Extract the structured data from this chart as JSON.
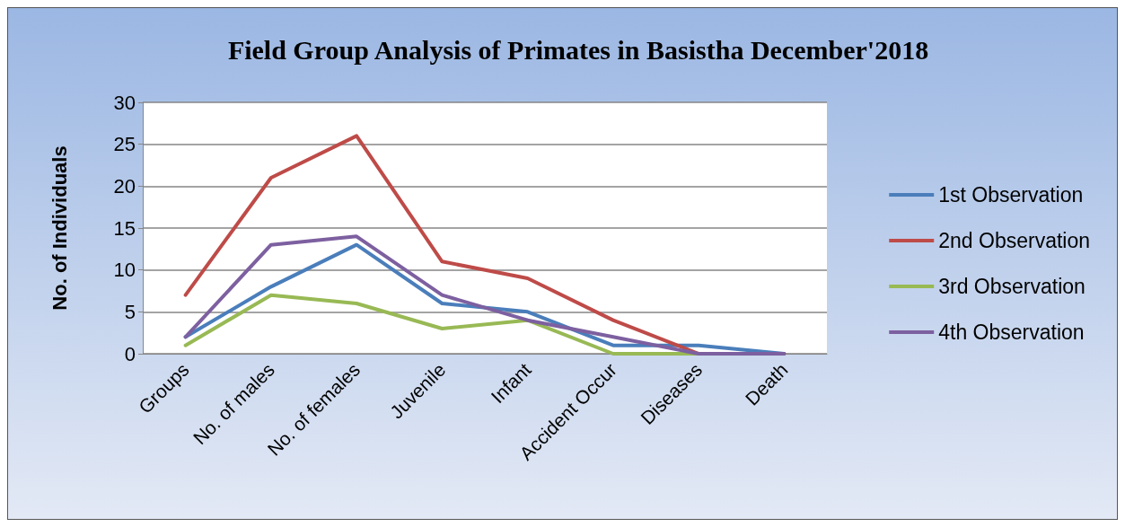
{
  "chart_data": {
    "type": "line",
    "title": "Field Group Analysis of Primates in Basistha December'2018",
    "ylabel": "No. of Individuals",
    "categories": [
      "Groups",
      "No. of males",
      "No. of females",
      "Juvenile",
      "Infant",
      "Accident Occur",
      "Diseases",
      "Death"
    ],
    "series": [
      {
        "name": "1st Observation",
        "color": "#4a7ebb",
        "values": [
          2,
          8,
          13,
          6,
          5,
          1,
          1,
          0
        ]
      },
      {
        "name": "2nd Observation",
        "color": "#be4b48",
        "values": [
          7,
          21,
          26,
          11,
          9,
          4,
          0,
          0
        ]
      },
      {
        "name": "3rd Observation",
        "color": "#98b954",
        "values": [
          1,
          7,
          6,
          3,
          4,
          0,
          0,
          0
        ]
      },
      {
        "name": "4th Observation",
        "color": "#7d60a0",
        "values": [
          2,
          13,
          14,
          7,
          4,
          2,
          0,
          0
        ]
      }
    ],
    "ylim": [
      0,
      30
    ],
    "yticks": [
      0,
      5,
      10,
      15,
      20,
      25,
      30
    ],
    "grid": "y",
    "legend": "right",
    "marker": "none",
    "line_style": "solid"
  }
}
